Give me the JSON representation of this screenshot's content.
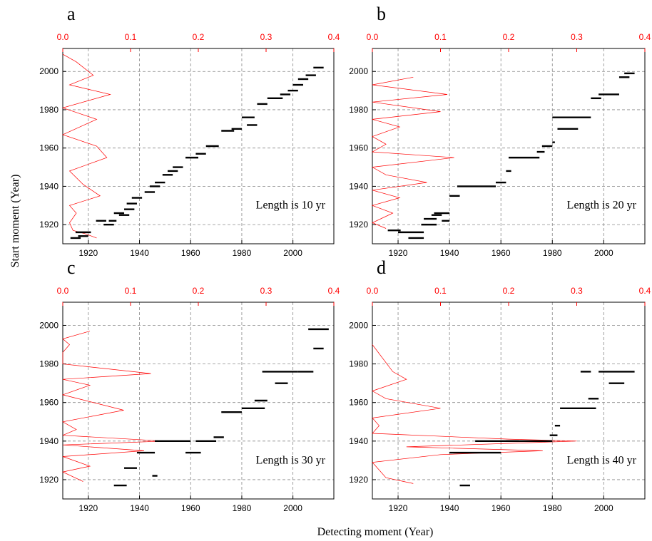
{
  "figure": {
    "xlabel": "Detecting moment (Year)",
    "ylabel": "Start moment (Year)"
  },
  "colors": {
    "ticks_secondary": "#ff0000",
    "series_primary": "#000000",
    "grid": "#888888"
  },
  "chart_data": [
    {
      "panel": "a",
      "type": "scatter",
      "annotation": "Length is 10 yr",
      "xlim": [
        1910,
        2016
      ],
      "ylim": [
        1910,
        2012
      ],
      "x2lim": [
        0,
        0.4
      ],
      "x2ticks": [
        "0.0",
        "0.1",
        "0.2",
        "0.3",
        "0.4"
      ],
      "xticks": [
        "1920",
        "1940",
        "1960",
        "1980",
        "2000"
      ],
      "yticks": [
        "1920",
        "1940",
        "1960",
        "1980",
        "2000"
      ],
      "segments": [
        [
          1913,
          1917,
          1913
        ],
        [
          1915,
          1921,
          1916
        ],
        [
          1916,
          1920,
          1914
        ],
        [
          1923,
          1927,
          1922
        ],
        [
          1926,
          1930,
          1920
        ],
        [
          1928,
          1931,
          1922
        ],
        [
          1930,
          1934,
          1926
        ],
        [
          1932,
          1936,
          1925
        ],
        [
          1934,
          1938,
          1928
        ],
        [
          1935,
          1939,
          1931
        ],
        [
          1937,
          1941,
          1934
        ],
        [
          1942,
          1946,
          1937
        ],
        [
          1944,
          1948,
          1940
        ],
        [
          1946,
          1950,
          1942
        ],
        [
          1949,
          1953,
          1946
        ],
        [
          1951,
          1955,
          1948
        ],
        [
          1953,
          1957,
          1950
        ],
        [
          1958,
          1963,
          1955
        ],
        [
          1962,
          1966,
          1957
        ],
        [
          1966,
          1971,
          1961
        ],
        [
          1972,
          1977,
          1969
        ],
        [
          1976,
          1980,
          1970
        ],
        [
          1980,
          1985,
          1976
        ],
        [
          1982,
          1986,
          1972
        ],
        [
          1986,
          1990,
          1983
        ],
        [
          1990,
          1996,
          1986
        ],
        [
          1995,
          1999,
          1988
        ],
        [
          1998,
          2002,
          1990
        ],
        [
          2000,
          2004,
          1993
        ],
        [
          2002,
          2006,
          1996
        ],
        [
          2005,
          2009,
          1998
        ],
        [
          2008,
          2012,
          2002
        ]
      ],
      "curve": [
        [
          0.0,
          2009
        ],
        [
          0.02,
          2005
        ],
        [
          0.045,
          1998
        ],
        [
          0.01,
          1993
        ],
        [
          0.07,
          1988
        ],
        [
          0.0,
          1981
        ],
        [
          0.05,
          1975
        ],
        [
          0.0,
          1967
        ],
        [
          0.05,
          1961
        ],
        [
          0.065,
          1955
        ],
        [
          0.01,
          1948
        ],
        [
          0.03,
          1941
        ],
        [
          0.055,
          1935
        ],
        [
          0.01,
          1930
        ],
        [
          0.02,
          1926
        ],
        [
          0.01,
          1921
        ],
        [
          0.015,
          1917
        ],
        [
          0.035,
          1915
        ],
        [
          0.05,
          1913
        ]
      ]
    },
    {
      "panel": "b",
      "type": "scatter",
      "annotation": "Length is 20 yr",
      "xlim": [
        1910,
        2016
      ],
      "ylim": [
        1910,
        2012
      ],
      "x2lim": [
        0,
        0.4
      ],
      "x2ticks": [
        "0.0",
        "0.1",
        "0.2",
        "0.3",
        "0.4"
      ],
      "xticks": [
        "1920",
        "1940",
        "1960",
        "1980",
        "2000"
      ],
      "yticks": [
        "1920",
        "1940",
        "1960",
        "1980",
        "2000"
      ],
      "segments": [
        [
          1916,
          1921,
          1917
        ],
        [
          1920,
          1930,
          1916
        ],
        [
          1924,
          1930,
          1913
        ],
        [
          1929,
          1935,
          1920
        ],
        [
          1930,
          1935,
          1923
        ],
        [
          1933,
          1937,
          1925
        ],
        [
          1934,
          1940,
          1926
        ],
        [
          1937,
          1940,
          1922
        ],
        [
          1940,
          1944,
          1935
        ],
        [
          1943,
          1958,
          1940
        ],
        [
          1958,
          1962,
          1942
        ],
        [
          1962,
          1964,
          1948
        ],
        [
          1963,
          1975,
          1955
        ],
        [
          1974,
          1977,
          1958
        ],
        [
          1976,
          1980,
          1961
        ],
        [
          1980,
          1981,
          1963
        ],
        [
          1980,
          1995,
          1976
        ],
        [
          1982,
          1990,
          1970
        ],
        [
          1995,
          1999,
          1986
        ],
        [
          1998,
          2006,
          1988
        ],
        [
          2006,
          2010,
          1997
        ],
        [
          2008,
          2012,
          1999
        ]
      ],
      "curve": [
        [
          0.06,
          1997
        ],
        [
          0.0,
          1993
        ],
        [
          0.11,
          1988
        ],
        [
          0.0,
          1984
        ],
        [
          0.1,
          1979
        ],
        [
          0.0,
          1975
        ],
        [
          0.04,
          1971
        ],
        [
          0.0,
          1966
        ],
        [
          0.02,
          1962
        ],
        [
          0.0,
          1958
        ],
        [
          0.12,
          1955
        ],
        [
          0.0,
          1950
        ],
        [
          0.02,
          1946
        ],
        [
          0.08,
          1942
        ],
        [
          0.0,
          1938
        ],
        [
          0.04,
          1934
        ],
        [
          0.0,
          1930
        ],
        [
          0.03,
          1926
        ],
        [
          0.0,
          1921
        ],
        [
          0.02,
          1918
        ]
      ]
    },
    {
      "panel": "c",
      "type": "scatter",
      "annotation": "Length is 30 yr",
      "xlim": [
        1910,
        2016
      ],
      "ylim": [
        1910,
        2012
      ],
      "x2lim": [
        0,
        0.4
      ],
      "x2ticks": [
        "0.0",
        "0.1",
        "0.2",
        "0.3",
        "0.4"
      ],
      "xticks": [
        "1920",
        "1940",
        "1960",
        "1980",
        "2000"
      ],
      "yticks": [
        "1920",
        "1940",
        "1960",
        "1980",
        "2000"
      ],
      "segments": [
        [
          1930,
          1935,
          1917
        ],
        [
          1934,
          1939,
          1926
        ],
        [
          1939,
          1946,
          1934
        ],
        [
          1945,
          1947,
          1922
        ],
        [
          1946,
          1960,
          1940
        ],
        [
          1958,
          1964,
          1934
        ],
        [
          1962,
          1970,
          1940
        ],
        [
          1969,
          1973,
          1942
        ],
        [
          1972,
          1980,
          1955
        ],
        [
          1980,
          1989,
          1957
        ],
        [
          1985,
          1990,
          1961
        ],
        [
          1988,
          2002,
          1976
        ],
        [
          1993,
          1998,
          1970
        ],
        [
          2002,
          2008,
          1976
        ],
        [
          2006,
          2014,
          1998
        ],
        [
          2008,
          2012,
          1988
        ]
      ],
      "curve": [
        [
          0.04,
          1997
        ],
        [
          0.0,
          1993
        ],
        [
          0.01,
          1990
        ],
        [
          0.0,
          1986
        ],
        [
          0.0,
          1980
        ],
        [
          0.13,
          1975
        ],
        [
          0.0,
          1972
        ],
        [
          0.04,
          1969
        ],
        [
          0.0,
          1964
        ],
        [
          0.09,
          1956
        ],
        [
          0.0,
          1950
        ],
        [
          0.02,
          1946
        ],
        [
          0.0,
          1943
        ],
        [
          0.15,
          1940
        ],
        [
          0.0,
          1938
        ],
        [
          0.12,
          1935
        ],
        [
          0.0,
          1932
        ],
        [
          0.04,
          1927
        ],
        [
          0.0,
          1924
        ],
        [
          0.03,
          1919
        ]
      ]
    },
    {
      "panel": "d",
      "type": "scatter",
      "annotation": "Length is 40 yr",
      "xlim": [
        1910,
        2016
      ],
      "ylim": [
        1910,
        2012
      ],
      "x2lim": [
        0,
        0.4
      ],
      "x2ticks": [
        "0.0",
        "0.1",
        "0.2",
        "0.3",
        "0.4"
      ],
      "xticks": [
        "1920",
        "1940",
        "1960",
        "1980",
        "2000"
      ],
      "yticks": [
        "1920",
        "1940",
        "1960",
        "1980",
        "2000"
      ],
      "segments": [
        [
          1944,
          1948,
          1917
        ],
        [
          1940,
          1960,
          1934
        ],
        [
          1950,
          1967,
          1940
        ],
        [
          1962,
          1980,
          1940
        ],
        [
          1979,
          1982,
          1943
        ],
        [
          1981,
          1983,
          1948
        ],
        [
          1983,
          1997,
          1957
        ],
        [
          1994,
          1998,
          1962
        ],
        [
          1991,
          1995,
          1976
        ],
        [
          1998,
          2012,
          1976
        ],
        [
          2002,
          2008,
          1970
        ]
      ],
      "curve": [
        [
          0.0,
          1990
        ],
        [
          0.03,
          1976
        ],
        [
          0.05,
          1972
        ],
        [
          0.0,
          1966
        ],
        [
          0.02,
          1962
        ],
        [
          0.1,
          1957
        ],
        [
          0.0,
          1952
        ],
        [
          0.01,
          1948
        ],
        [
          0.0,
          1944
        ],
        [
          0.2,
          1941
        ],
        [
          0.3,
          1940
        ],
        [
          0.05,
          1937
        ],
        [
          0.25,
          1935
        ],
        [
          0.1,
          1933
        ],
        [
          0.0,
          1929
        ],
        [
          0.02,
          1921
        ],
        [
          0.06,
          1918
        ]
      ]
    }
  ]
}
